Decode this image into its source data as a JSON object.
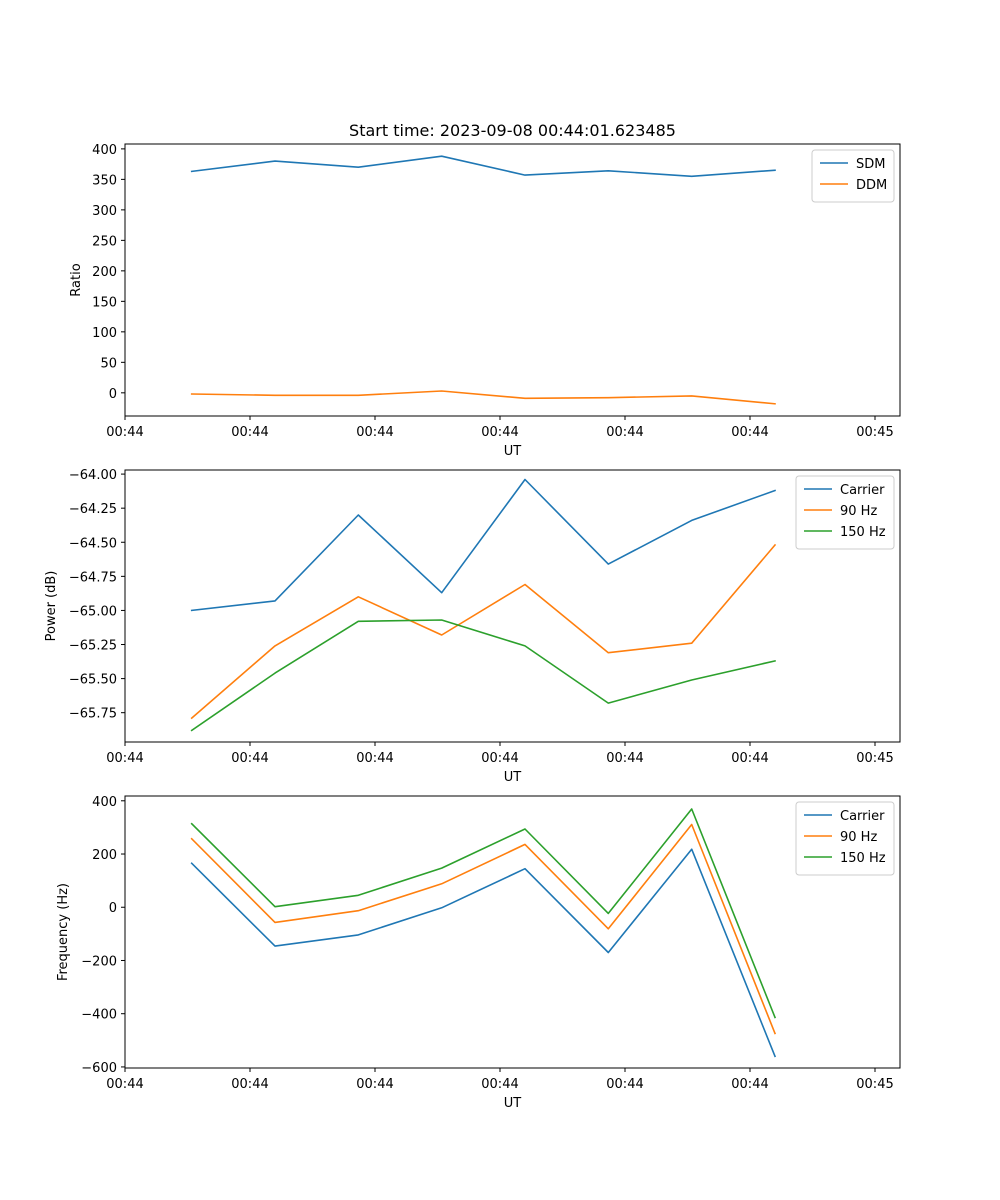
{
  "chart_data": [
    {
      "type": "line",
      "title": "Start time: 2023-09-08 00:44:01.623485",
      "xlabel": "UT",
      "ylabel": "Ratio",
      "x": [
        1,
        2,
        3,
        4,
        5,
        6,
        7,
        8
      ],
      "xlim": [
        0.2,
        9.5
      ],
      "xticks": [
        0.2,
        1.7,
        3.2,
        4.7,
        6.2,
        7.7,
        9.2
      ],
      "xticklabels": [
        "00:44",
        "00:44",
        "00:44",
        "00:44",
        "00:44",
        "00:44",
        "00:45"
      ],
      "ylim": [
        -38,
        408
      ],
      "yticks": [
        0,
        50,
        100,
        150,
        200,
        250,
        300,
        350,
        400
      ],
      "yticklabels": [
        "0",
        "50",
        "100",
        "150",
        "200",
        "250",
        "300",
        "350",
        "400"
      ],
      "legend": "top-right",
      "series": [
        {
          "name": "SDM",
          "color": "#1f77b4",
          "values": [
            363,
            380,
            370,
            388,
            357,
            364,
            355,
            365
          ]
        },
        {
          "name": "DDM",
          "color": "#ff7f0e",
          "values": [
            -2,
            -4,
            -4,
            3,
            -9,
            -8,
            -5,
            -18
          ]
        }
      ]
    },
    {
      "type": "line",
      "title": "",
      "xlabel": "UT",
      "ylabel": "Power (dB)",
      "x": [
        1,
        2,
        3,
        4,
        5,
        6,
        7,
        8
      ],
      "xlim": [
        0.2,
        9.5
      ],
      "xticks": [
        0.2,
        1.7,
        3.2,
        4.7,
        6.2,
        7.7,
        9.2
      ],
      "xticklabels": [
        "00:44",
        "00:44",
        "00:44",
        "00:44",
        "00:44",
        "00:44",
        "00:45"
      ],
      "ylim": [
        -65.965,
        -63.97
      ],
      "yticks": [
        -65.75,
        -65.5,
        -65.25,
        -65.0,
        -64.75,
        -64.5,
        -64.25,
        -64.0
      ],
      "yticklabels": [
        "−65.75",
        "−65.50",
        "−65.25",
        "−65.00",
        "−64.75",
        "−64.50",
        "−64.25",
        "−64.00"
      ],
      "legend": "top-right",
      "series": [
        {
          "name": "Carrier",
          "color": "#1f77b4",
          "values": [
            -65.0,
            -64.93,
            -64.3,
            -64.87,
            -64.04,
            -64.66,
            -64.34,
            -64.12
          ]
        },
        {
          "name": "90 Hz",
          "color": "#ff7f0e",
          "values": [
            -65.79,
            -65.26,
            -64.9,
            -65.18,
            -64.81,
            -65.31,
            -65.24,
            -64.52
          ]
        },
        {
          "name": "150 Hz",
          "color": "#2ca02c",
          "values": [
            -65.88,
            -65.46,
            -65.08,
            -65.07,
            -65.26,
            -65.68,
            -65.51,
            -65.37
          ]
        }
      ]
    },
    {
      "type": "line",
      "title": "",
      "xlabel": "UT",
      "ylabel": "Frequency (Hz)",
      "x": [
        1,
        2,
        3,
        4,
        5,
        6,
        7,
        8
      ],
      "xlim": [
        0.2,
        9.5
      ],
      "xticks": [
        0.2,
        1.7,
        3.2,
        4.7,
        6.2,
        7.7,
        9.2
      ],
      "xticklabels": [
        "00:44",
        "00:44",
        "00:44",
        "00:44",
        "00:44",
        "00:44",
        "00:45"
      ],
      "ylim": [
        -604,
        418
      ],
      "yticks": [
        -600,
        -400,
        -200,
        0,
        200,
        400
      ],
      "yticklabels": [
        "−600",
        "−400",
        "−200",
        "0",
        "200",
        "400"
      ],
      "legend": "top-right",
      "series": [
        {
          "name": "Carrier",
          "color": "#1f77b4",
          "values": [
            165,
            -146,
            -104,
            -2,
            145,
            -170,
            218,
            -560
          ]
        },
        {
          "name": "90 Hz",
          "color": "#ff7f0e",
          "values": [
            257,
            -57,
            -13,
            88,
            236,
            -81,
            311,
            -474
          ]
        },
        {
          "name": "150 Hz",
          "color": "#2ca02c",
          "values": [
            314,
            2,
            45,
            147,
            294,
            -23,
            369,
            -414
          ]
        }
      ]
    }
  ]
}
